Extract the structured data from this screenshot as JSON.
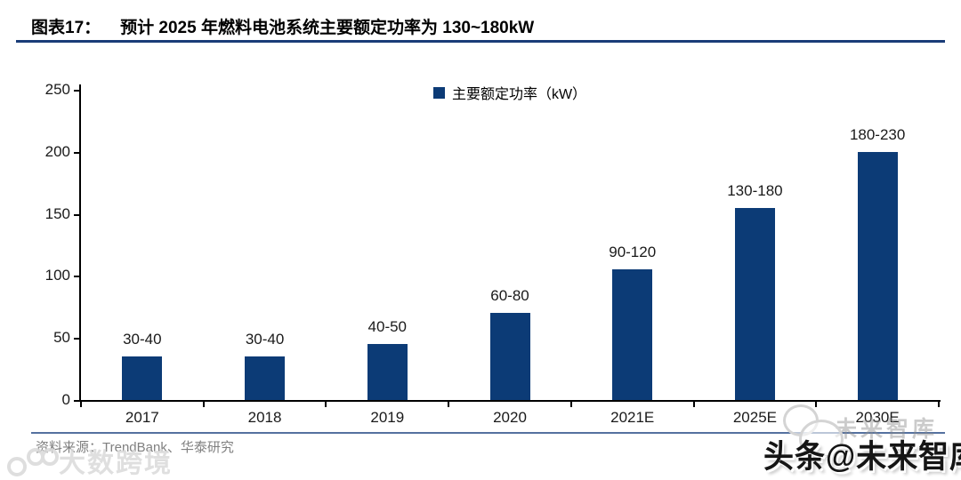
{
  "figure": {
    "label": "图表17：",
    "title": "预计 2025 年燃料电池系统主要额定功率为 130~180kW"
  },
  "chart_data": {
    "type": "bar",
    "legend": "主要额定功率（kW）",
    "legend_position": "top-center",
    "categories": [
      "2017",
      "2018",
      "2019",
      "2020",
      "2021E",
      "2025E",
      "2030E"
    ],
    "values": [
      35,
      35,
      45,
      70,
      105,
      155,
      200
    ],
    "bar_labels": [
      "30-40",
      "30-40",
      "40-50",
      "60-80",
      "90-120",
      "130-180",
      "180-230"
    ],
    "ylim": [
      0,
      250
    ],
    "yticks": [
      0,
      50,
      100,
      150,
      200,
      250
    ],
    "grid": false,
    "xlabel": "",
    "ylabel": ""
  },
  "colors": {
    "bar": "#0C3B76",
    "title_rule": "#1A3C78",
    "separator": "#55719F"
  },
  "footer": {
    "source": "资料来源：TrendBank、华泰研究"
  },
  "watermarks": {
    "bottom_left": "大数跨境",
    "bottom_right_faint": "未来智库",
    "bottom_right": "头条@未来智库"
  }
}
